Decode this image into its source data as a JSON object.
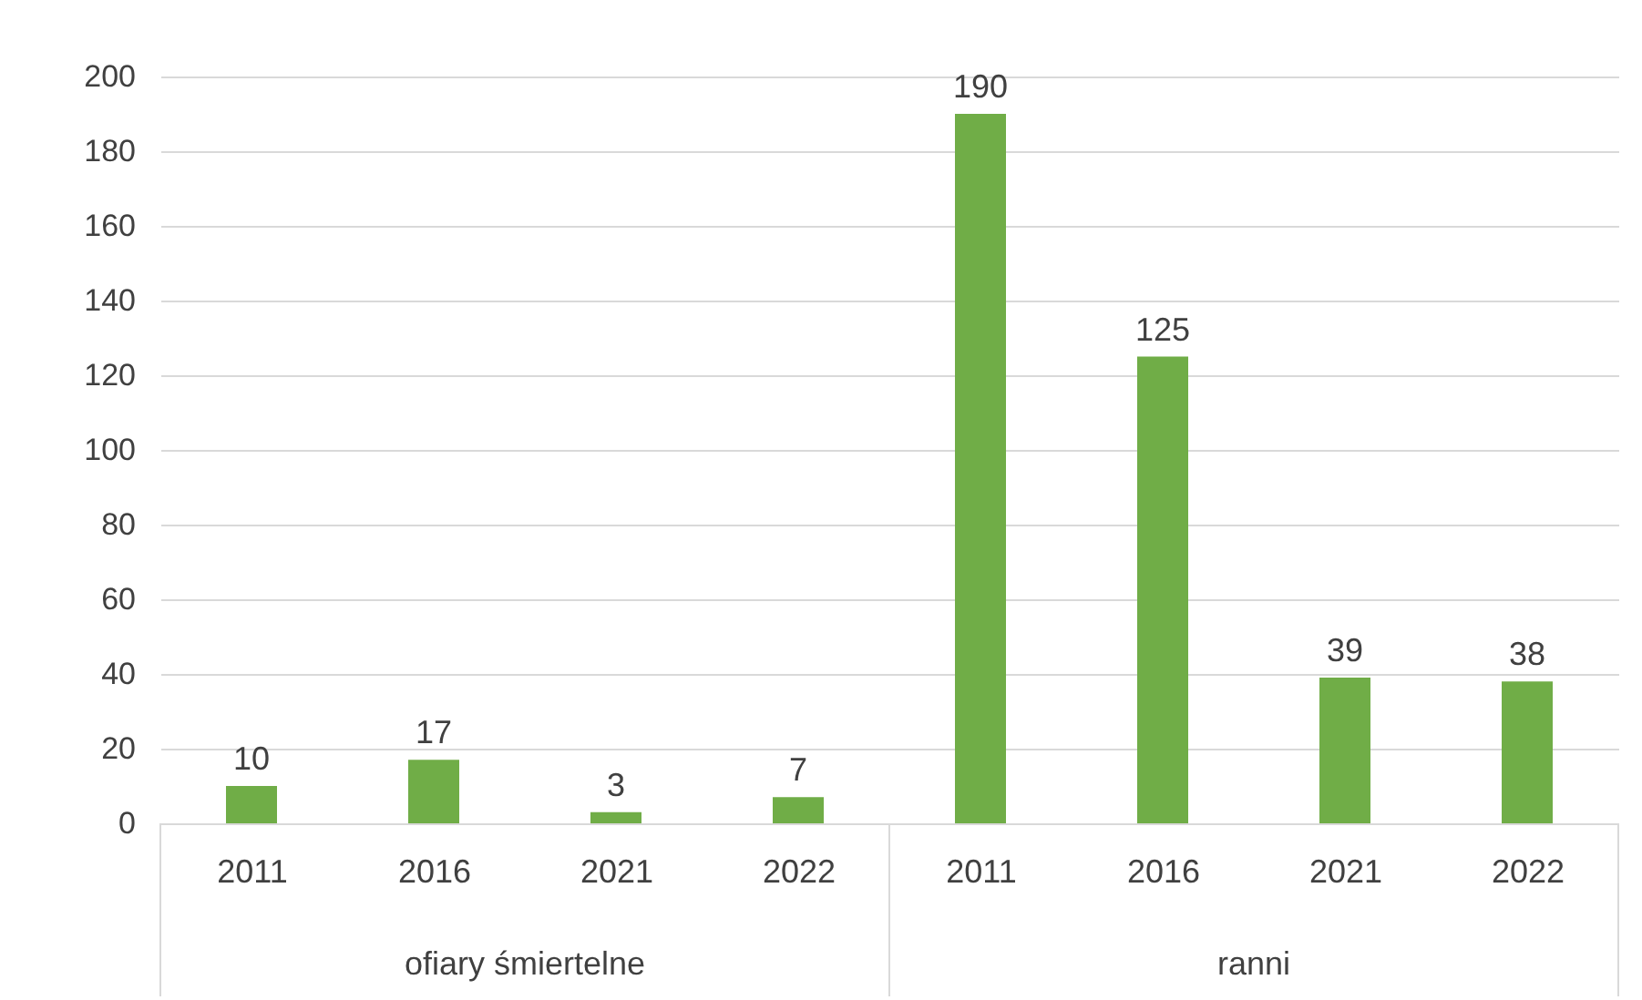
{
  "chart_data": {
    "type": "bar",
    "categories": [
      "2011",
      "2016",
      "2021",
      "2022",
      "2011",
      "2016",
      "2021",
      "2022"
    ],
    "values": [
      10,
      17,
      3,
      7,
      190,
      125,
      39,
      38
    ],
    "color": "#70ad47",
    "ylim": [
      0,
      200
    ],
    "yticks": [
      0,
      20,
      40,
      60,
      80,
      100,
      120,
      140,
      160,
      180,
      200
    ],
    "grid": "y",
    "data_labels": true,
    "annotations": [
      "ofiary śmiertelne",
      "ranni"
    ]
  }
}
